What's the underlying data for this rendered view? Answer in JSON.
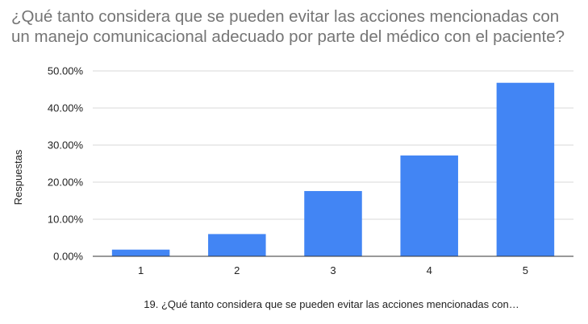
{
  "chart_data": {
    "type": "bar",
    "title": "¿Qué tanto considera que se pueden evitar las acciones mencionadas con un manejo comunicacional adecuado por parte del médico con el paciente?",
    "xlabel": "19.  ¿Qué tanto considera que se pueden evitar las acciones mencionadas con…",
    "ylabel": "Respuestas",
    "categories": [
      "1",
      "2",
      "3",
      "4",
      "5"
    ],
    "values": [
      1.8,
      6.0,
      17.6,
      27.2,
      46.8
    ],
    "ylim": [
      0,
      50
    ],
    "yticks": [
      0,
      10,
      20,
      30,
      40,
      50
    ],
    "ytick_labels": [
      "0.00%",
      "10.00%",
      "20.00%",
      "30.00%",
      "40.00%",
      "50.00%"
    ],
    "grid": true,
    "bar_color": "#4285f4"
  }
}
